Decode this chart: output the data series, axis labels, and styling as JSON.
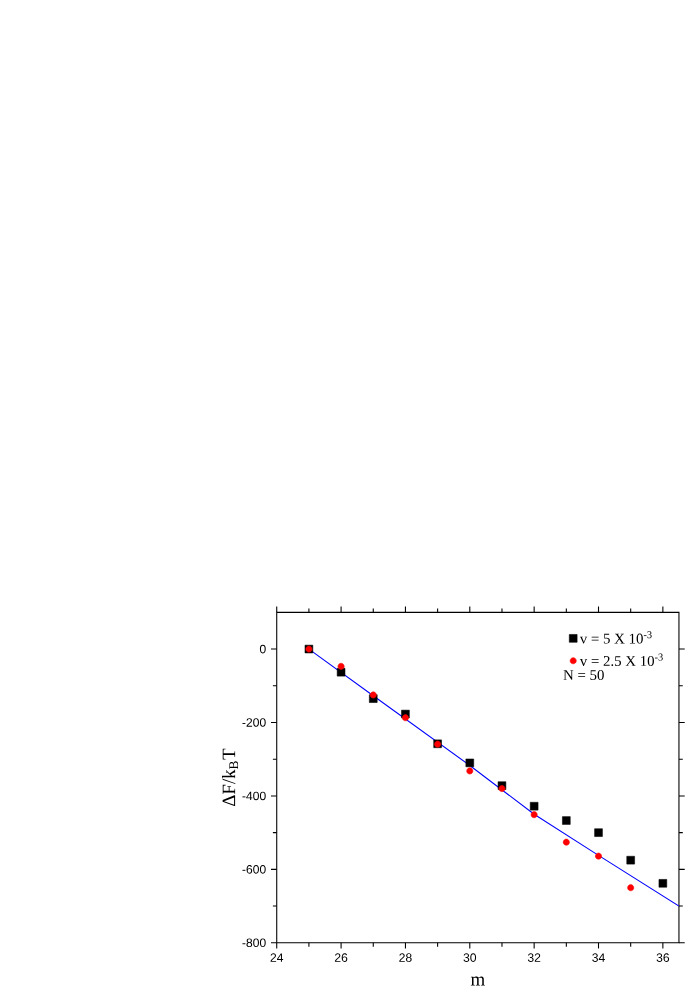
{
  "chart_data": {
    "type": "scatter",
    "xlabel": "m",
    "ylabel": "ΔF/k$_{B}$T",
    "xlim": [
      24,
      36.5
    ],
    "ylim": [
      -800,
      100
    ],
    "xticks": [
      24,
      26,
      28,
      30,
      32,
      34,
      36
    ],
    "yticks": [
      -800,
      -600,
      -400,
      -200,
      0
    ],
    "legend": "top right",
    "grid": false,
    "annotations": [
      "N = 50"
    ],
    "series": [
      {
        "name": "v = 5 X 10$^{-3}$",
        "color": "#000000",
        "marker": "square",
        "x": [
          25,
          26,
          27,
          28,
          29,
          30,
          31,
          32,
          33,
          34,
          35,
          36
        ],
        "values": [
          0,
          -63,
          -135,
          -177,
          -258,
          -310,
          -372,
          -428,
          -467,
          -500,
          -575,
          -638
        ]
      },
      {
        "name": "v = 2.5 X 10$^{-3}$",
        "color": "#ff0000",
        "marker": "circle",
        "x": [
          25,
          26,
          27,
          28,
          29,
          30,
          31,
          32,
          33,
          34,
          35
        ],
        "values": [
          0,
          -47,
          -125,
          -187,
          -259,
          -332,
          -380,
          -451,
          -526,
          -564,
          -650
        ]
      },
      {
        "type": "line",
        "color": "#0000ff",
        "marker": "none",
        "x": [
          25,
          27,
          30,
          32,
          34,
          36.5
        ],
        "values": [
          0,
          -127,
          -317,
          -450,
          -562,
          -700
        ]
      }
    ]
  }
}
